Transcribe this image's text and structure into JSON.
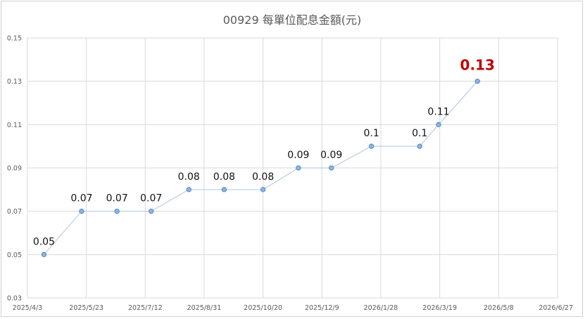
{
  "chart_data": {
    "type": "line",
    "title": "00929 每單位配息金額(元)",
    "xlabel": "",
    "ylabel": "",
    "x_axis": {
      "type": "date",
      "range": [
        "2025-04-03",
        "2026-06-27"
      ],
      "tick_labels": [
        "2025/4/3",
        "2025/5/23",
        "2025/7/12",
        "2025/8/31",
        "2025/10/20",
        "2025/12/9",
        "2026/1/28",
        "2026/3/19",
        "2026/5/8",
        "2026/6/27"
      ]
    },
    "y_axis": {
      "range": [
        0.03,
        0.15
      ],
      "tick_labels": [
        "0.03",
        "0.05",
        "0.07",
        "0.09",
        "0.11",
        "0.13",
        "0.15"
      ]
    },
    "grid": true,
    "legend": "none",
    "series": [
      {
        "color": "#8eb4e3",
        "points": [
          {
            "x": "2025-04-17",
            "y": 0.05,
            "label": "0.05"
          },
          {
            "x": "2025-05-19",
            "y": 0.07,
            "label": "0.07"
          },
          {
            "x": "2025-06-18",
            "y": 0.07,
            "label": "0.07"
          },
          {
            "x": "2025-07-17",
            "y": 0.07,
            "label": "0.07"
          },
          {
            "x": "2025-08-18",
            "y": 0.08,
            "label": "0.08"
          },
          {
            "x": "2025-09-17",
            "y": 0.08,
            "label": "0.08"
          },
          {
            "x": "2025-10-20",
            "y": 0.08,
            "label": "0.08"
          },
          {
            "x": "2025-11-19",
            "y": 0.09,
            "label": "0.09"
          },
          {
            "x": "2025-12-17",
            "y": 0.09,
            "label": "0.09"
          },
          {
            "x": "2026-01-20",
            "y": 0.1,
            "label": "0.1"
          },
          {
            "x": "2026-03-02",
            "y": 0.1,
            "label": "0.1"
          },
          {
            "x": "2026-03-18",
            "y": 0.11,
            "label": "0.11"
          },
          {
            "x": "2026-04-20",
            "y": 0.13,
            "label": "0.13",
            "highlight": true
          }
        ]
      }
    ],
    "colors": {
      "line": "#b9cde5",
      "marker_fill": "#8eb4e3",
      "marker_stroke": "#4f81bd",
      "highlight_label": "#c00000",
      "grid": "#d9d9d9"
    }
  }
}
